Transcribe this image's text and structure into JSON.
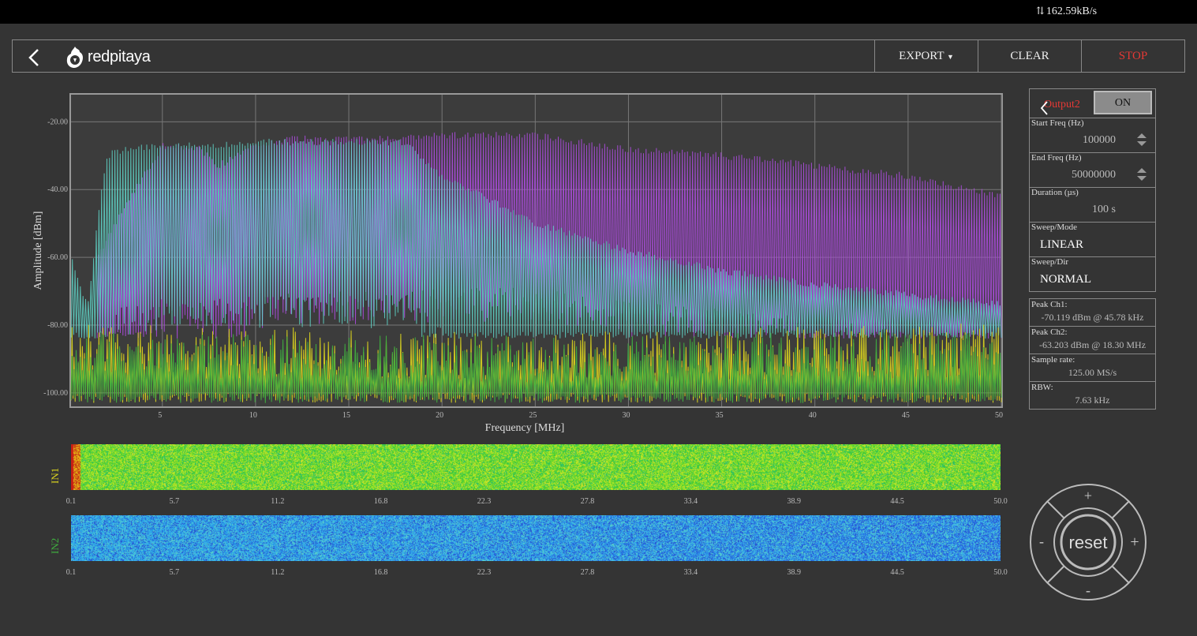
{
  "status_bar": {
    "net_rate": "162.59kB/s"
  },
  "header": {
    "logo_text": "redpitaya",
    "buttons": {
      "export": "EXPORT",
      "clear": "CLEAR",
      "stop": "STOP"
    }
  },
  "side_panel": {
    "channel": "Output2",
    "toggle": "ON",
    "start_freq": {
      "label": "Start Freq (Hz)",
      "value": "100000"
    },
    "end_freq": {
      "label": "End Freq (Hz)",
      "value": "50000000"
    },
    "duration": {
      "label": "Duration (µs)",
      "value": "100  s"
    },
    "sweep_mode": {
      "label": "Sweep/Mode",
      "value": "LINEAR"
    },
    "sweep_dir": {
      "label": "Sweep/Dir",
      "value": "NORMAL"
    }
  },
  "stats": {
    "peak_ch1": {
      "label": "Peak Ch1:",
      "value": "-70.119 dBm @ 45.78 kHz"
    },
    "peak_ch2": {
      "label": "Peak Ch2:",
      "value": "-63.203 dBm @ 18.30 MHz"
    },
    "sample_rate": {
      "label": "Sample rate:",
      "value": "125.00 MS/s"
    },
    "rbw": {
      "label": "RBW:",
      "value": "7.63 kHz"
    }
  },
  "waterfall": {
    "in1_label": "IN1",
    "in2_label": "IN2",
    "ticks": [
      "0.1",
      "5.7",
      "11.2",
      "16.8",
      "22.3",
      "27.8",
      "33.4",
      "38.9",
      "44.5",
      "50.0"
    ]
  },
  "nav_pad": {
    "reset": "reset",
    "up": "+",
    "down": "-",
    "left": "-",
    "right": "+"
  },
  "chart_data": {
    "type": "area",
    "xlabel": "Frequency   [MHz]",
    "ylabel": "Amplitude  [dBm]",
    "xlim": [
      0.1,
      50
    ],
    "ylim": [
      -104,
      -12
    ],
    "x_ticks": [
      5,
      10,
      15,
      20,
      25,
      30,
      35,
      40,
      45,
      50
    ],
    "y_ticks": [
      -20,
      -40,
      -60,
      -80,
      -100
    ],
    "y_tick_labels": [
      "-20.00",
      "-40.00",
      "-60.00",
      "-80.00",
      "-100.00"
    ],
    "grid": true,
    "colors": {
      "purple": "#a64bd6",
      "cyan": "#5fd6c9",
      "yellow": "#d9d21f",
      "green": "#3fae3f",
      "bg": "#3c3c3c"
    },
    "series": [
      {
        "color": "purple",
        "x": [
          1.5,
          3,
          5,
          7,
          8,
          10,
          12,
          15,
          18,
          20,
          25,
          30,
          35,
          40,
          45,
          50
        ],
        "y": [
          -60,
          -45,
          -27,
          -28,
          -33,
          -27,
          -25,
          -25,
          -25,
          -24,
          -24,
          -28,
          -30,
          -33,
          -36,
          -42
        ]
      },
      {
        "color": "cyan",
        "x": [
          0.1,
          1,
          1.5,
          2,
          3,
          5,
          8,
          10,
          15,
          18,
          20,
          25,
          30,
          35,
          40,
          45,
          50
        ],
        "y": [
          -60,
          -75,
          -50,
          -30,
          -28,
          -27,
          -27,
          -26,
          -26,
          -26,
          -36,
          -50,
          -58,
          -64,
          -68,
          -71,
          -74
        ]
      },
      {
        "color": "yellow",
        "x": [
          0.1,
          25,
          50
        ],
        "y": [
          -82,
          -85,
          -82
        ]
      },
      {
        "color": "green",
        "x": [
          0.1,
          25,
          50
        ],
        "y": [
          -84,
          -86,
          -84
        ]
      }
    ]
  }
}
